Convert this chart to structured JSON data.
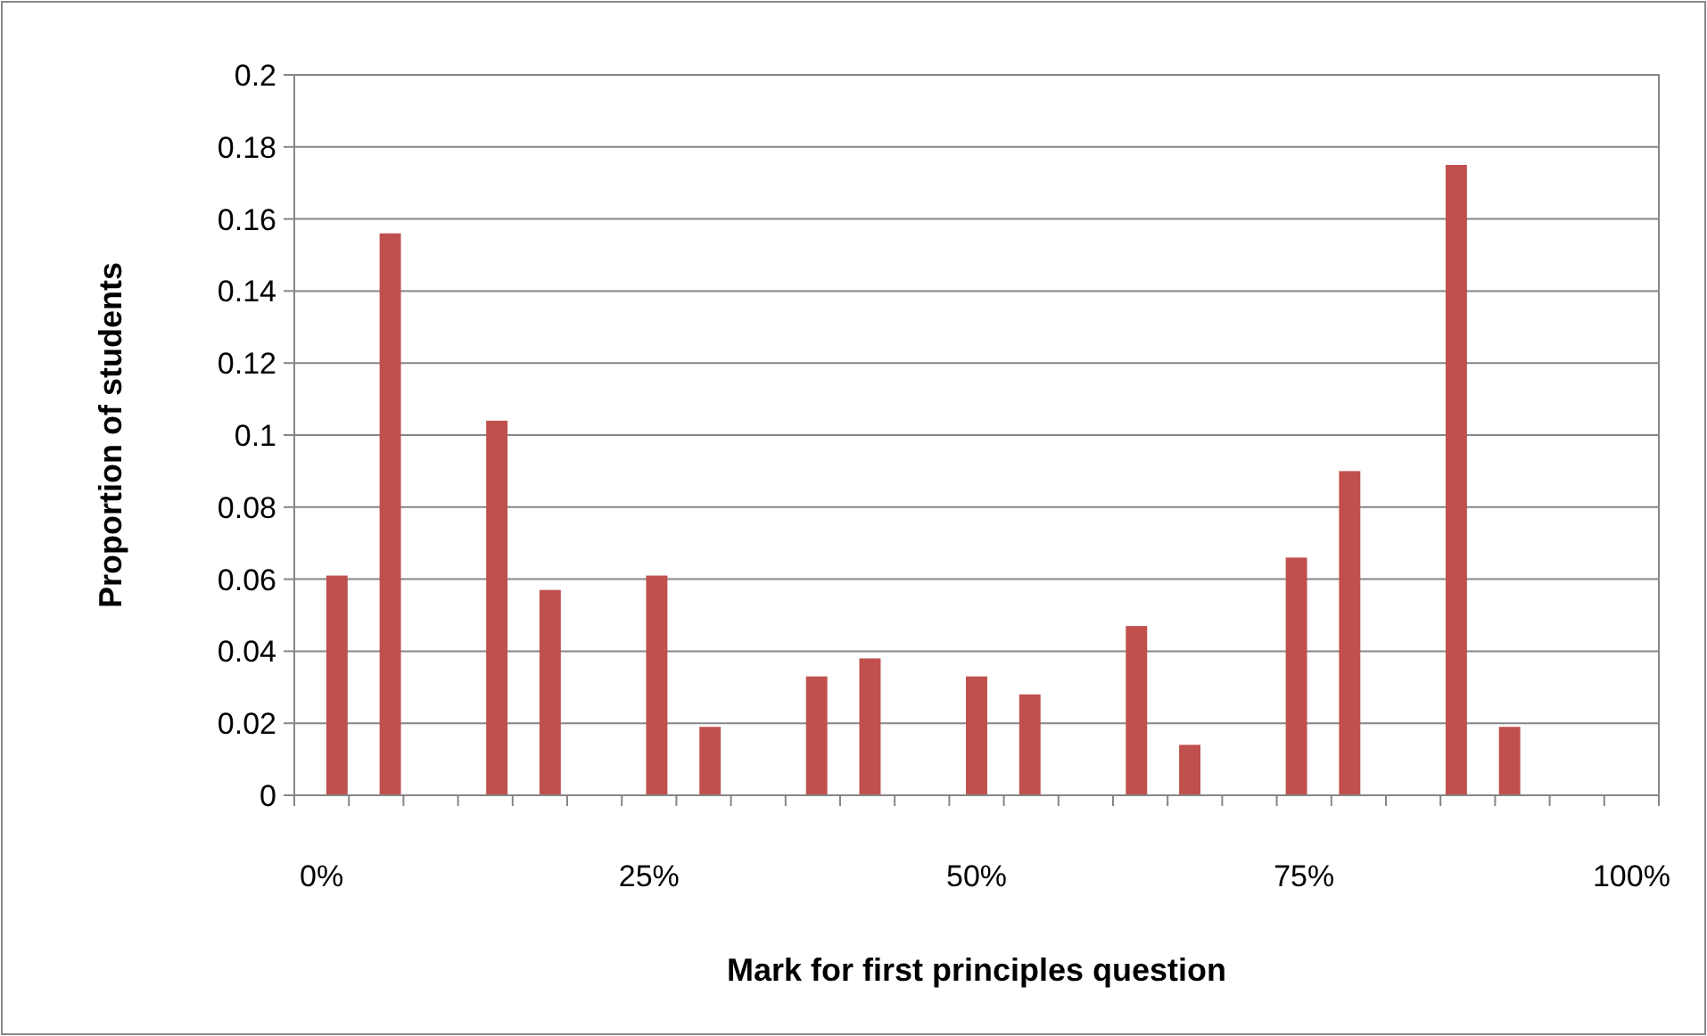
{
  "chart_data": {
    "type": "bar",
    "xlabel": "Mark for first principles question",
    "ylabel": "Proportion of students",
    "categories": [
      "0%",
      null,
      null,
      null,
      null,
      null,
      "25%",
      null,
      null,
      null,
      null,
      null,
      "50%",
      null,
      null,
      null,
      null,
      null,
      "75%",
      null,
      null,
      null,
      null,
      null,
      "100%"
    ],
    "values": [
      0.061,
      0.156,
      null,
      0.104,
      0.057,
      null,
      0.061,
      0.019,
      null,
      0.033,
      0.038,
      null,
      0.033,
      0.028,
      null,
      0.047,
      0.014,
      null,
      0.066,
      0.09,
      null,
      0.175,
      0.019,
      null,
      null
    ],
    "color": "#c0504d",
    "ylim": [
      0,
      0.2
    ],
    "yticks": [
      0,
      0.02,
      0.04,
      0.06,
      0.08,
      0.1,
      0.12,
      0.14,
      0.16,
      0.18,
      0.2
    ],
    "grid": "y"
  }
}
